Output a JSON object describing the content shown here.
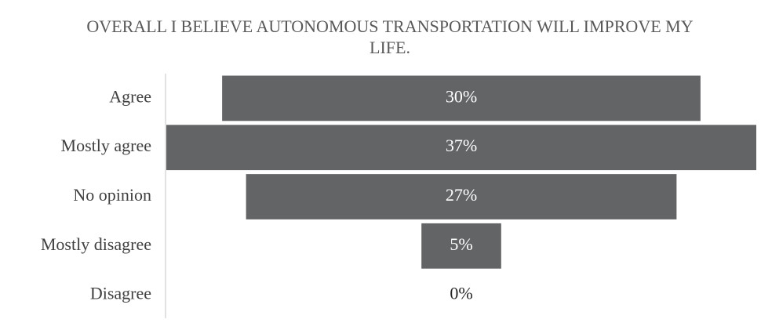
{
  "chart_data": {
    "type": "funnel",
    "title": "OVERALL I BELIEVE AUTONOMOUS TRANSPORTATION WILL IMPROVE MY LIFE.",
    "categories": [
      "Agree",
      "Mostly agree",
      "No opinion",
      "Mostly disagree",
      "Disagree"
    ],
    "values": [
      30,
      37,
      27,
      5,
      0
    ],
    "value_labels": [
      "30%",
      "37%",
      "27%",
      "5%",
      "0%"
    ],
    "color": "#636466"
  }
}
